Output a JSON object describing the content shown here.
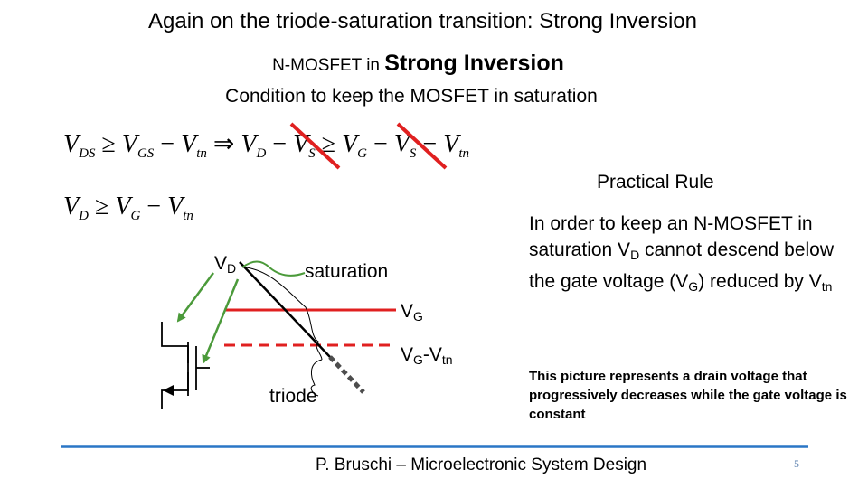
{
  "slide": {
    "title": "Again on the triode-saturation transition: Strong Inversion",
    "subtitle_small": "N-MOSFET in ",
    "subtitle_big": "Strong Inversion",
    "condition": "Condition to keep the MOSFET in saturation",
    "practical_rule": "Practical Rule",
    "description": {
      "part1": "In order to keep an N-MOSFET in saturation V",
      "sub1": "D",
      "part2": " cannot descend below the gate voltage (V",
      "sub2": "G",
      "part3": ") reduced by V",
      "sub3": "tn"
    },
    "note": "This picture represents a drain voltage that progressively decreases while the gate voltage is constant",
    "footer": "P. Bruschi – Microelectronic System Design",
    "page_number": "5"
  },
  "equation1": {
    "v1": "V",
    "s1": "DS",
    "op1": "≥",
    "v2": "V",
    "s2": "GS",
    "op2": "−",
    "v3": "V",
    "s3": "tn",
    "imp": "⇒",
    "v4": "V",
    "s4": "D",
    "op3": "−",
    "v5": "V",
    "s5": "S",
    "op4": "≥",
    "v6": "V",
    "s6": "G",
    "op5": "−",
    "v7": "V",
    "s7": "S",
    "op6": "−",
    "v8": "V",
    "s8": "tn"
  },
  "equation2": {
    "v1": "V",
    "s1": "D",
    "op1": "≥",
    "v2": "V",
    "s2": "G",
    "op2": "−",
    "v3": "V",
    "s3": "tn"
  },
  "diagram": {
    "vd_label": "V",
    "vd_sub": "D",
    "saturation_label": "saturation",
    "vg_label": "V",
    "vg_sub": "G",
    "vgvtn_label": "V",
    "vgvtn_sub1": "G",
    "vgvtn_dash": "-V",
    "vgvtn_sub2": "tn",
    "triode_label": "triode"
  },
  "colors": {
    "strike": "#e02020",
    "vg_line": "#e02020",
    "arrow_green": "#4b9a3a",
    "footer_rule": "#2a76c6",
    "transistor": "#000000"
  }
}
